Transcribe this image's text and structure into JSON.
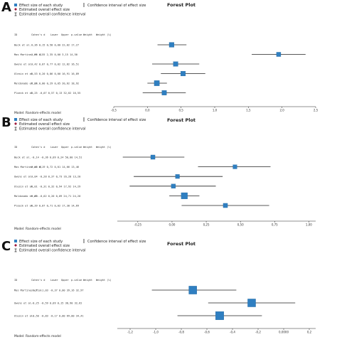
{
  "colors": {
    "study_marker": "#2f7fc1",
    "overall_diamond": "#a01a3c",
    "line": "#222222"
  },
  "legend": {
    "effect": "Effect size of each study",
    "ci": "Confidence interval of effect size",
    "overall": "Estimated overall effect size",
    "overall_ci": "Estimated overall confidence interval"
  },
  "columns": [
    "ID",
    "Cohen's d",
    "Lower",
    "Upper",
    "p-value",
    "Weight",
    "Weight (%)"
  ],
  "chart_data": [
    {
      "panel": "A",
      "type": "forest",
      "title": "Forest Plot",
      "model": "Model: Random-effects model",
      "xticks": [
        "-0,5",
        "0,0",
        "0,5",
        "1,0",
        "1,5",
        "2,0",
        "2,5"
      ],
      "xlim": [
        -0.5,
        2.5
      ],
      "studies": [
        {
          "id": "Beck et al.",
          "row": "0,36  0,15  0,58  0,00  22,02  17,27",
          "d": 0.36,
          "lo": 0.15,
          "hi": 0.58,
          "w": 17.27
        },
        {
          "id": "Mas Martinez et al.",
          "row": "1,95  1,55  2,35  0,00  3,15  14,50",
          "d": 1.95,
          "lo": 1.55,
          "hi": 2.35,
          "w": 14.5
        },
        {
          "id": "Owens et al.",
          "row": "0,42  0,07  0,77  0,02  12,82  16,51",
          "d": 0.42,
          "lo": 0.07,
          "hi": 0.77,
          "w": 16.51
        },
        {
          "id": "Olesin et al.",
          "row": "0,53  0,20  0,86  0,00  16,91  16,89",
          "d": 0.53,
          "lo": 0.2,
          "hi": 0.86,
          "w": 16.89
        },
        {
          "id": "Maldonado et al.",
          "row": "0,14  0,00  0,29  0,05  20,62  18,92",
          "d": 0.14,
          "lo": 0.0,
          "hi": 0.29,
          "w": 18.92
        },
        {
          "id": "Ploeck et al.",
          "row": "0,25  -0,07  0,57  0,13  32,02  16,55",
          "d": 0.25,
          "lo": -0.07,
          "hi": 0.57,
          "w": 16.55
        }
      ]
    },
    {
      "panel": "B",
      "type": "forest",
      "title": "Forest Plot",
      "model": "Model: Random-effects model",
      "xticks": [
        "-0,25",
        "0,00",
        "0,25",
        "0,50",
        "0,75",
        "1,00"
      ],
      "xlim": [
        -0.4,
        1.05
      ],
      "studies": [
        {
          "id": "Beck et al.",
          "row": "-0,14  -0,36  0,09  0,24  50,00  14,51",
          "d": -0.14,
          "lo": -0.36,
          "hi": 0.09,
          "w": 14.51
        },
        {
          "id": "Mas Martinez et al.",
          "row": "0,46  0,19  0,72  0,01  14,66  13,46",
          "d": 0.46,
          "lo": 0.19,
          "hi": 0.72,
          "w": 13.46
        },
        {
          "id": "Owens et al.",
          "row": "0,04  -0,28  0,37  0,73  16,28  13,20",
          "d": 0.04,
          "lo": -0.28,
          "hi": 0.37,
          "w": 13.2
        },
        {
          "id": "Olesin et al.",
          "row": "0,01  -0,31  0,32  0,94  17,92  14,29",
          "d": 0.01,
          "lo": -0.31,
          "hi": 0.32,
          "w": 14.29
        },
        {
          "id": "Maldonado et al.",
          "row": "0,09  -0,02  0,20  0,09  24,71  24,20",
          "d": 0.09,
          "lo": -0.02,
          "hi": 0.2,
          "w": 24.2
        },
        {
          "id": "Ploeck et al.",
          "row": "0,39  0,07  0,71  0,02  17,30  14,69",
          "d": 0.39,
          "lo": 0.07,
          "hi": 0.71,
          "w": 14.69
        }
      ]
    },
    {
      "panel": "C",
      "type": "forest",
      "title": "Forest Plot",
      "model": "Model: Random-effects model",
      "xticks": [
        "-1,2",
        "-1,0",
        "-0,8",
        "-0,6",
        "-0,4",
        "-0,2",
        "0,0000",
        "0,2"
      ],
      "xlim": [
        -1.3,
        0.25
      ],
      "studies": [
        {
          "id": "Mas Martinez et al.",
          "row": "-0,71  -1,03  -0,37  0,00  39,16  32,97",
          "d": -0.71,
          "lo": -1.03,
          "hi": -0.37,
          "w": 32.97
        },
        {
          "id": "Owens et al.",
          "row": "-0,25  -0,59  0,09  0,15  38,90  32,62",
          "d": -0.25,
          "lo": -0.59,
          "hi": 0.09,
          "w": 32.62
        },
        {
          "id": "Olesin et al.",
          "row": "-0,50  -0,83  -0,17  0,00  69,00  34,41",
          "d": -0.5,
          "lo": -0.83,
          "hi": -0.17,
          "w": 34.41
        }
      ]
    }
  ]
}
